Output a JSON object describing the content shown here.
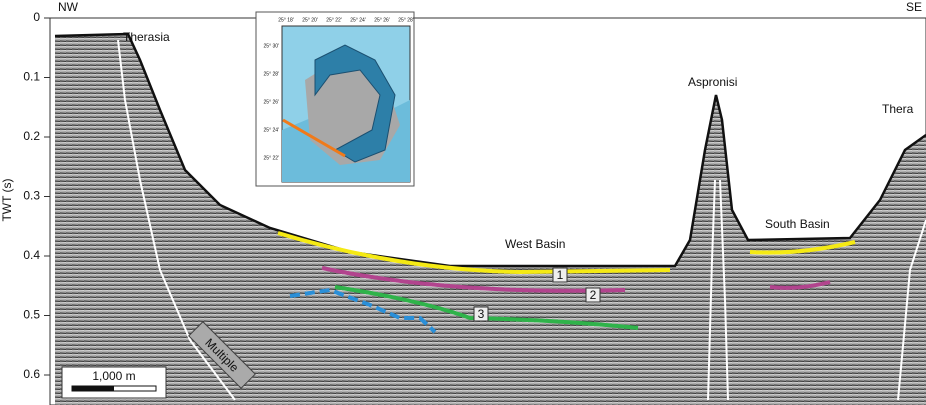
{
  "header": {
    "left": "NW",
    "right": "SE"
  },
  "axis": {
    "label": "TWT (s)",
    "ticks": [
      0,
      0.1,
      0.2,
      0.3,
      0.4,
      0.5,
      0.6
    ]
  },
  "labels": {
    "therasia": "Therasia",
    "aspronisi": "Aspronisi",
    "thera": "Thera",
    "west_basin": "West Basin",
    "south_basin": "South Basin",
    "multiple": "Multiple"
  },
  "horizons": [
    "1",
    "2",
    "3"
  ],
  "scale_bar": "1,000 m",
  "inset": {
    "lon_ticks": [
      "25° 18'",
      "25° 20'",
      "25° 22'",
      "25° 24'",
      "25° 26'",
      "25° 28'"
    ],
    "lat_ticks": [
      "25° 30'",
      "25° 28'",
      "25° 26'",
      "25° 24'",
      "25° 22'"
    ]
  }
}
